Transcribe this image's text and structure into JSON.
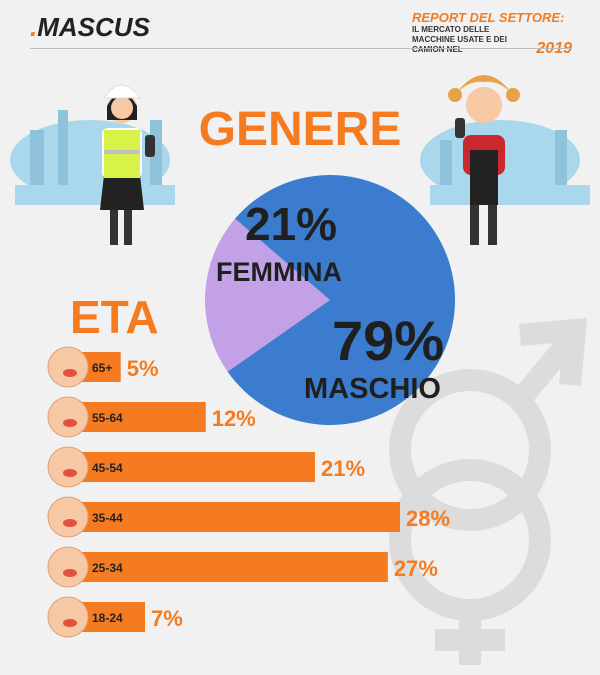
{
  "header": {
    "logo": "MASCUS",
    "report_title": "REPORT DEL SETTORE:",
    "report_subtitle": "IL MERCATO DELLE MACCHINE USATE E DEI CAMION NEL",
    "report_year": "2019"
  },
  "colors": {
    "orange": "#f47b20",
    "blue": "#3b7ccf",
    "lavender": "#c3a1e6",
    "dark": "#222222",
    "skyline": "#a9d8ec"
  },
  "chart_data": [
    {
      "type": "pie",
      "title": "GENERE",
      "slices": [
        {
          "value_label": "21%",
          "label": "FEMMINA",
          "value": 21,
          "color": "#c3a1e6"
        },
        {
          "value_label": "79%",
          "label": "MASCHIO",
          "value": 79,
          "color": "#3b7ccf"
        }
      ]
    },
    {
      "type": "bar",
      "title": "ETA",
      "orientation": "horizontal",
      "categories": [
        "65+",
        "55-64",
        "45-54",
        "35-44",
        "25-34",
        "18-24"
      ],
      "values": [
        5,
        12,
        21,
        28,
        27,
        7
      ],
      "value_labels": [
        "5%",
        "12%",
        "21%",
        "28%",
        "27%",
        "7%"
      ],
      "color": "#f47b20"
    }
  ]
}
